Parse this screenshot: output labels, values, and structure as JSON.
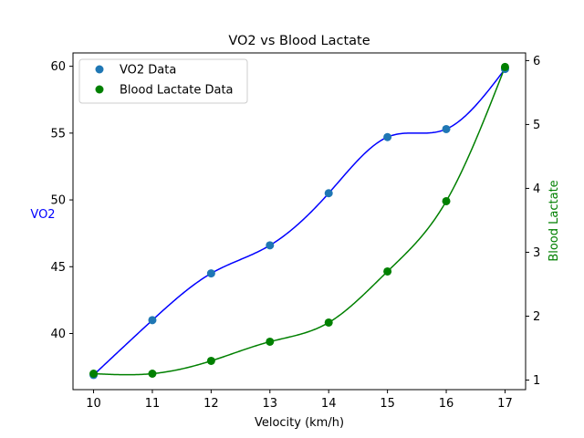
{
  "chart_data": {
    "type": "line",
    "title": "VO2 vs Blood Lactate",
    "xlabel": "Velocity (km/h)",
    "ylabel_left": "VO2",
    "ylabel_right": "Blood Lactate",
    "x": [
      10,
      11,
      12,
      13,
      14,
      15,
      16,
      17
    ],
    "xlim": [
      9.65,
      17.35
    ],
    "ylim_left": [
      35.8,
      61.0
    ],
    "ylim_right": [
      0.85,
      6.12
    ],
    "xticks": [
      10,
      11,
      12,
      13,
      14,
      15,
      16,
      17
    ],
    "yticks_left": [
      40,
      45,
      50,
      55,
      60
    ],
    "yticks_right": [
      1,
      2,
      3,
      4,
      5,
      6
    ],
    "grid": false,
    "legend_position": "upper-left",
    "series": [
      {
        "name": "VO2 Data",
        "axis": "left",
        "values": [
          36.9,
          41.0,
          44.5,
          46.6,
          50.5,
          54.7,
          55.3,
          59.8
        ],
        "marker_color": "#1f77b4",
        "line_color": "#0000ff"
      },
      {
        "name": "Blood Lactate Data",
        "axis": "right",
        "values": [
          1.1,
          1.1,
          1.3,
          1.6,
          1.9,
          2.7,
          3.8,
          5.9
        ],
        "marker_color": "#008000",
        "line_color": "#008000"
      }
    ],
    "colors": {
      "left_label": "#0000ff",
      "right_label": "#008000"
    }
  }
}
